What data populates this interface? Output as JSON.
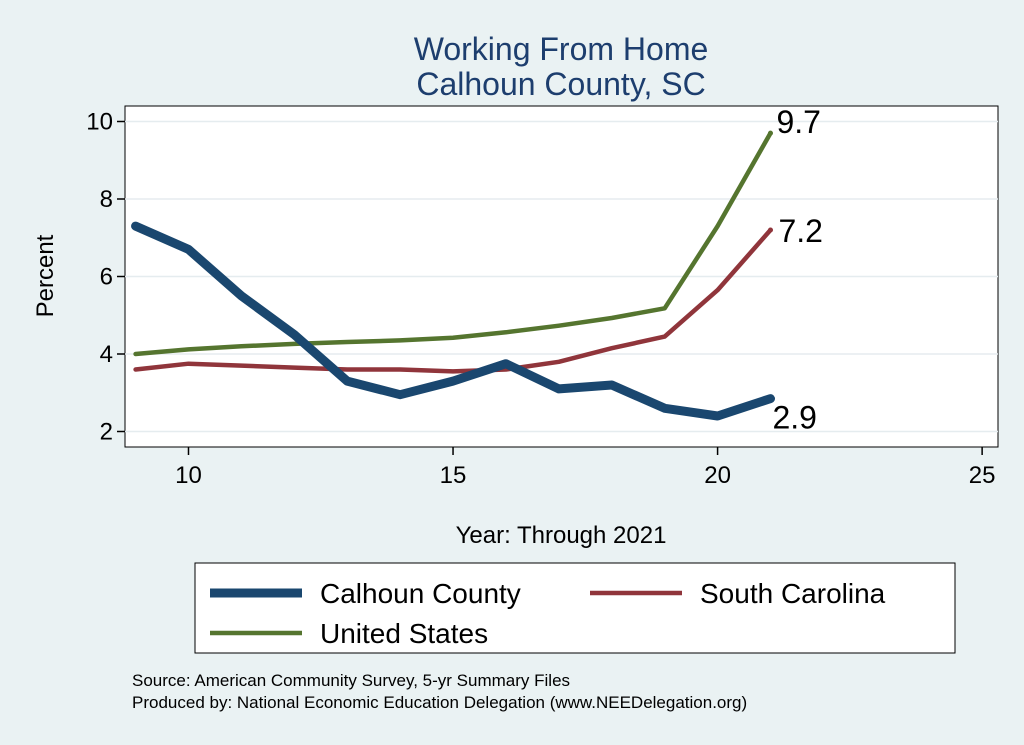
{
  "chart_data": {
    "type": "line",
    "title": "Working From Home",
    "subtitle": "Calhoun County, SC",
    "xlabel": "Year: Through 2021",
    "ylabel": "Percent",
    "xlim": [
      8.8,
      25.3
    ],
    "ylim": [
      1.6,
      10.4
    ],
    "xticks": [
      10,
      15,
      20,
      25
    ],
    "yticks": [
      2,
      4,
      6,
      8,
      10
    ],
    "grid": true,
    "series": [
      {
        "name": "Calhoun County",
        "color": "#1a476f",
        "x": [
          9,
          10,
          11,
          12,
          13,
          14,
          15,
          16,
          17,
          18,
          19,
          20,
          21
        ],
        "values": [
          7.3,
          6.7,
          5.5,
          4.5,
          3.3,
          2.95,
          3.3,
          3.75,
          3.1,
          3.2,
          2.6,
          2.4,
          2.85
        ],
        "end_label": "2.9"
      },
      {
        "name": "South Carolina",
        "color": "#90353b",
        "x": [
          9,
          10,
          11,
          12,
          13,
          14,
          15,
          16,
          17,
          18,
          19,
          20,
          21
        ],
        "values": [
          3.6,
          3.75,
          3.7,
          3.65,
          3.6,
          3.6,
          3.55,
          3.6,
          3.8,
          4.15,
          4.45,
          5.65,
          7.2
        ],
        "end_label": "7.2"
      },
      {
        "name": "United States",
        "color": "#55752f",
        "x": [
          9,
          10,
          11,
          12,
          13,
          14,
          15,
          16,
          17,
          18,
          19,
          20,
          21
        ],
        "values": [
          4.0,
          4.12,
          4.2,
          4.26,
          4.31,
          4.35,
          4.42,
          4.56,
          4.73,
          4.93,
          5.18,
          7.3,
          9.7
        ],
        "end_label": "9.7"
      }
    ],
    "legend": {
      "position": "bottom",
      "entries": [
        "Calhoun County",
        "South Carolina",
        "United States"
      ]
    },
    "notes": [
      "Source: American Community Survey, 5-yr Summary Files",
      "Produced by: National Economic Education Delegation (www.NEEDelegation.org)"
    ]
  }
}
